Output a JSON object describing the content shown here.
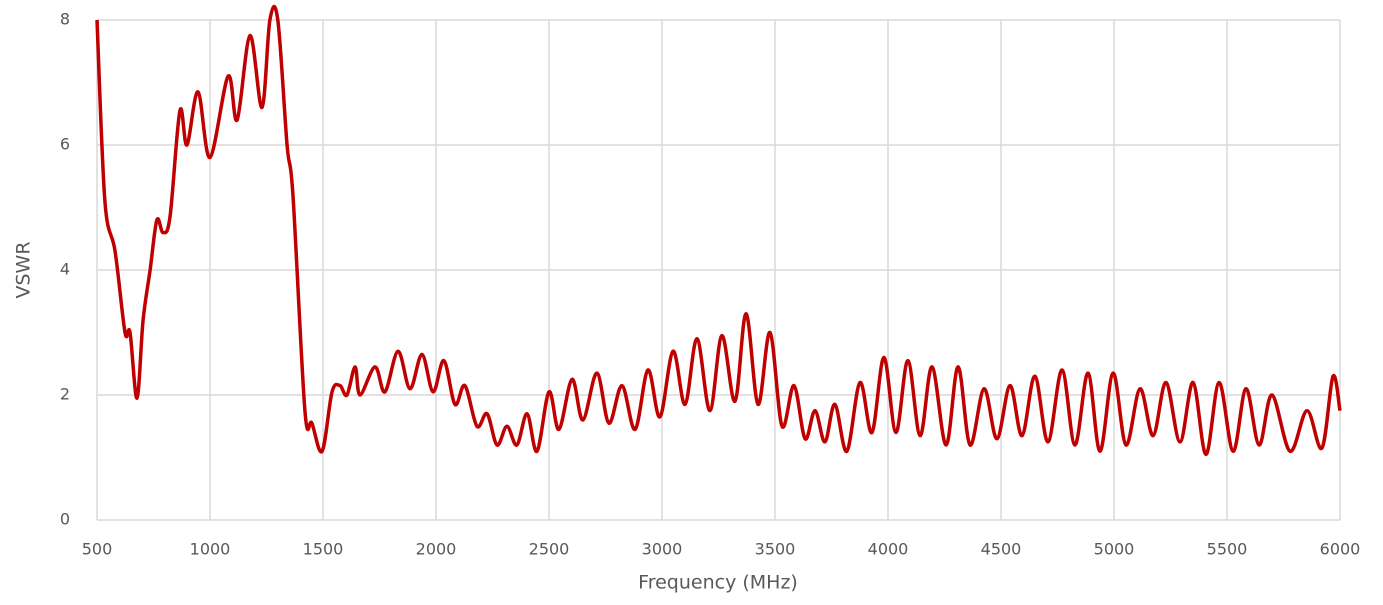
{
  "chart_data": {
    "type": "line",
    "x_label": "Frequency (MHz)",
    "y_label": "VSWR",
    "xlim": [
      500,
      6000
    ],
    "xticks": [
      500,
      1000,
      1500,
      2000,
      2500,
      3000,
      3500,
      4000,
      4500,
      5000,
      5500,
      6000
    ],
    "ylim": [
      0,
      8
    ],
    "yticks": [
      0,
      2,
      4,
      6,
      8
    ],
    "grid": true,
    "series": [
      {
        "color": "#c00000",
        "x": [
          500,
          535,
          580,
          624,
          646,
          677,
          704,
          735,
          765,
          792,
          823,
          867,
          898,
          947,
          1000,
          1080,
          1120,
          1177,
          1230,
          1265,
          1300,
          1341,
          1367,
          1420,
          1451,
          1496,
          1540,
          1575,
          1606,
          1642,
          1664,
          1730,
          1774,
          1832,
          1885,
          1938,
          1987,
          2035,
          2084,
          2128,
          2181,
          2226,
          2270,
          2314,
          2358,
          2403,
          2447,
          2500,
          2544,
          2602,
          2650,
          2712,
          2765,
          2823,
          2881,
          2938,
          2991,
          3049,
          3102,
          3155,
          3212,
          3265,
          3323,
          3372,
          3425,
          3478,
          3531,
          3584,
          3633,
          3677,
          3721,
          3765,
          3818,
          3876,
          3929,
          3982,
          4035,
          4088,
          4142,
          4195,
          4257,
          4310,
          4363,
          4425,
          4482,
          4540,
          4593,
          4650,
          4708,
          4770,
          4827,
          4885,
          4938,
          4996,
          5053,
          5115,
          5173,
          5230,
          5292,
          5350,
          5407,
          5465,
          5527,
          5584,
          5642,
          5699,
          5779,
          5854,
          5920,
          5969,
          6000
        ],
        "values": [
          8,
          5.1,
          4.3,
          3.0,
          3.0,
          1.95,
          3.2,
          4.0,
          4.8,
          4.6,
          4.85,
          6.55,
          6.0,
          6.85,
          5.8,
          7.1,
          6.4,
          7.75,
          6.6,
          8,
          8,
          6.0,
          5.2,
          1.75,
          1.55,
          1.1,
          2.05,
          2.15,
          2.0,
          2.45,
          2.0,
          2.45,
          2.05,
          2.7,
          2.1,
          2.65,
          2.05,
          2.55,
          1.85,
          2.15,
          1.5,
          1.7,
          1.2,
          1.5,
          1.2,
          1.7,
          1.1,
          2.05,
          1.45,
          2.25,
          1.6,
          2.35,
          1.55,
          2.15,
          1.45,
          2.4,
          1.65,
          2.7,
          1.85,
          2.9,
          1.75,
          2.95,
          1.9,
          3.3,
          1.85,
          3.0,
          1.5,
          2.15,
          1.3,
          1.75,
          1.25,
          1.85,
          1.1,
          2.2,
          1.4,
          2.6,
          1.4,
          2.55,
          1.35,
          2.45,
          1.2,
          2.45,
          1.2,
          2.1,
          1.3,
          2.15,
          1.35,
          2.3,
          1.25,
          2.4,
          1.2,
          2.35,
          1.1,
          2.35,
          1.2,
          2.1,
          1.35,
          2.2,
          1.25,
          2.2,
          1.05,
          2.2,
          1.1,
          2.1,
          1.2,
          2.0,
          1.1,
          1.75,
          1.15,
          2.3,
          1.75
        ]
      }
    ]
  }
}
